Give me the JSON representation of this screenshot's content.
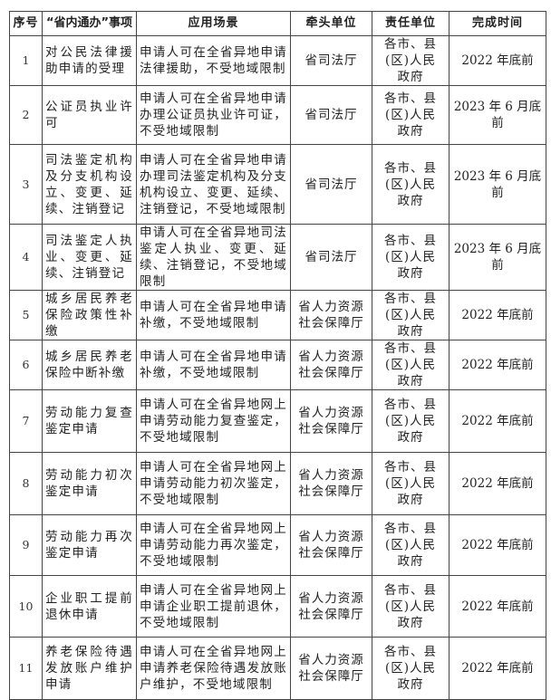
{
  "headers": [
    "序号",
    "“省内通办”事项",
    "应用场景",
    "牵头单位",
    "责任单位",
    "完成时间"
  ],
  "rows": [
    {
      "no": "1",
      "item": "对公民法律援助申请的受理",
      "scenario": "申请人可在全省异地申请法律援助，不受地域限制",
      "lead": "省司法厅",
      "resp": "各市、县(区)人民政府",
      "time": "2022 年底前"
    },
    {
      "no": "2",
      "item": "公证员执业许可",
      "scenario": "申请人可在全省异地申请办理公证员执业许可证，不受地域限制",
      "lead": "省司法厅",
      "resp": "各市、县(区)人民政府",
      "time": "2023 年 6 月底前"
    },
    {
      "no": "3",
      "item": "司法鉴定机构及分支机构设立、变更、延续、注销登记",
      "scenario": "申请人可在全省异地申请办理司法鉴定机构及分支机构设立、变更、延续、注销登记，不受地域限制",
      "lead": "省司法厅",
      "resp": "各市、县(区)人民政府",
      "time": "2023 年 6 月底前"
    },
    {
      "no": "4",
      "item": "司法鉴定人执业、变更、延续、注销登记",
      "scenario": "申请人可在全省异地司法鉴定人执业、变更、延续、注销登记，不受地域限制",
      "lead": "省司法厅",
      "resp": "各市、县(区)人民政府",
      "time": "2023 年 6 月底前"
    },
    {
      "no": "5",
      "item": "城乡居民养老保险政策性补缴",
      "scenario": "申请人可在全省异地申请补缴，不受地域限制",
      "lead": "省人力资源社会保障厅",
      "resp": "各市、县(区)人民政府",
      "time": "2022 年底前"
    },
    {
      "no": "6",
      "item": "城乡居民养老保险中断补缴",
      "scenario": "申请人可在全省异地申请补缴，不受地域限制",
      "lead": "省人力资源社会保障厅",
      "resp": "各市、县(区)人民政府",
      "time": "2022 年底前"
    },
    {
      "no": "7",
      "item": "劳动能力复查鉴定申请",
      "scenario": "申请人可在全省异地网上申请劳动能力复查鉴定，不受地域限制",
      "lead": "省人力资源社会保障厅",
      "resp": "各市、县(区)人民政府",
      "time": "2022 年底前"
    },
    {
      "no": "8",
      "item": "劳动能力初次鉴定申请",
      "scenario": "申请人可在全省异地网上申请劳动能力初次鉴定，不受地域限制",
      "lead": "省人力资源社会保障厅",
      "resp": "各市、县(区)人民政府",
      "time": "2022 年底前"
    },
    {
      "no": "9",
      "item": "劳动能力再次鉴定申请",
      "scenario": "申请人可在全省异地网上申请劳动能力再次鉴定，不受地域限制",
      "lead": "省人力资源社会保障厅",
      "resp": "各市、县(区)人民政府",
      "time": "2022 年底前"
    },
    {
      "no": "10",
      "item": "企业职工提前退休申请",
      "scenario": "申请人可在全省异地网上申请企业职工提前退休，不受地域限制",
      "lead": "省人力资源社会保障厅",
      "resp": "各市、县(区)人民政府",
      "time": "2022 年底前"
    },
    {
      "no": "11",
      "item": "养老保险待遇发放账户维护申请",
      "scenario": "申请人可在全省异地网上申请养老保险待遇发放账户维护，不受地域限制",
      "lead": "省人力资源社会保障厅",
      "resp": "各市、县(区)人民政府",
      "time": "2022 年底前"
    }
  ]
}
